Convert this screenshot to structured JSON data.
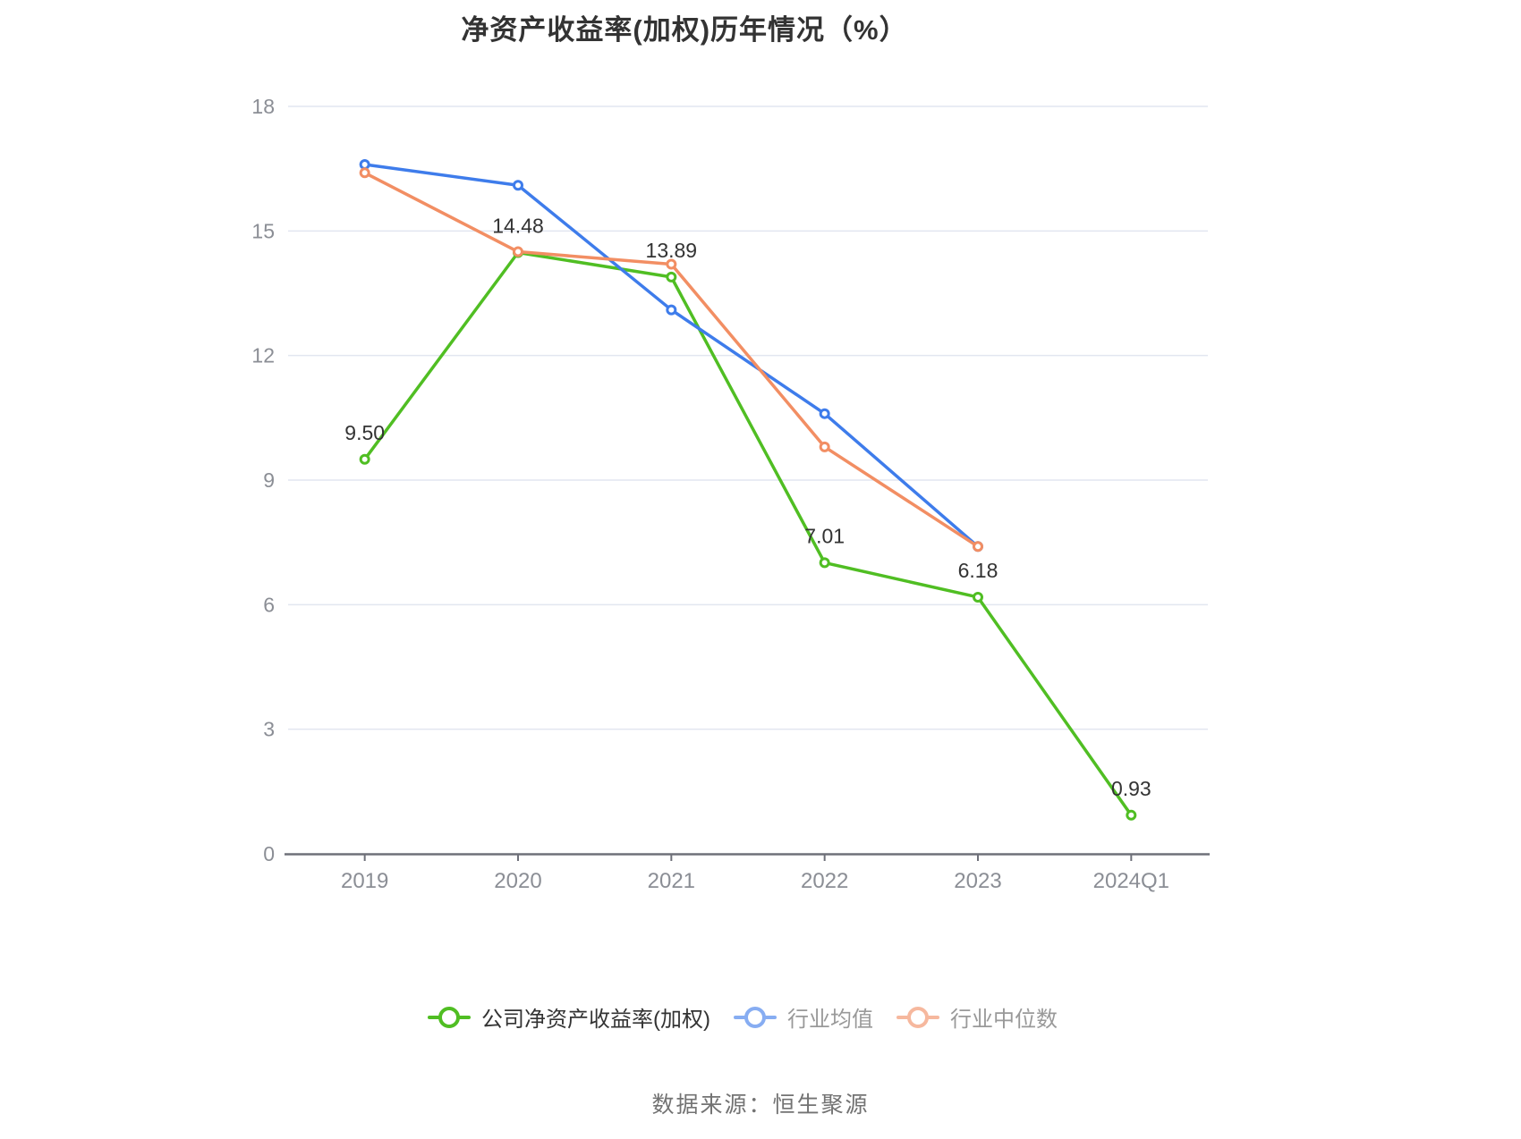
{
  "title": "净资产收益率(加权)历年情况（%）",
  "source": "数据来源：恒生聚源",
  "palette": {
    "company_green": "#50BE23",
    "industry_mean_blue": "#3E7CEB",
    "industry_median_orange": "#F28E63",
    "grid_line": "#E2E6F0",
    "axis_line": "#6E7079",
    "axis_label": "#8B8E95",
    "value_label": "#333333",
    "background": "#FFFFFF"
  },
  "chart_data": {
    "type": "line",
    "title": "净资产收益率(加权)历年情况（%）",
    "categories": [
      "2019",
      "2020",
      "2021",
      "2022",
      "2023",
      "2024Q1"
    ],
    "series": [
      {
        "name": "公司净资产收益率(加权)",
        "color": "#50BE23",
        "values": [
          9.5,
          14.48,
          13.89,
          7.01,
          6.18,
          0.93
        ],
        "labels": [
          "9.50",
          "14.48",
          "13.89",
          "7.01",
          "6.18",
          "0.93"
        ],
        "show_labels": true
      },
      {
        "name": "行业均值",
        "color": "#3E7CEB",
        "values": [
          16.6,
          16.1,
          13.1,
          10.6,
          7.4,
          null
        ],
        "labels": [],
        "show_labels": false
      },
      {
        "name": "行业中位数",
        "color": "#F28E63",
        "values": [
          16.4,
          14.5,
          14.2,
          9.8,
          7.4,
          null
        ],
        "labels": [],
        "show_labels": false
      }
    ],
    "xlabel": "",
    "ylabel": "",
    "ylim": [
      0,
      18
    ],
    "yticks": [
      0,
      3,
      6,
      9,
      12,
      15,
      18
    ],
    "grid": true,
    "legend_position": "bottom"
  },
  "legend": {
    "items": [
      {
        "label": "公司净资产收益率(加权)",
        "color": "#50BE23",
        "muted": false
      },
      {
        "label": "行业均值",
        "color": "#3E7CEB",
        "muted": true
      },
      {
        "label": "行业中位数",
        "color": "#F28E63",
        "muted": true
      }
    ]
  }
}
